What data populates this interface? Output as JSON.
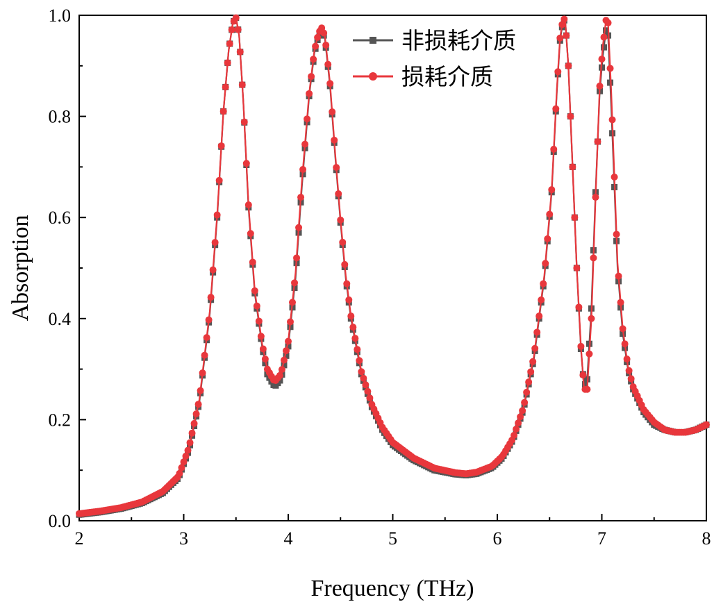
{
  "chart_data": {
    "type": "line",
    "xlabel": "Frequency (THz)",
    "ylabel": "Absorption",
    "xlim": [
      2,
      8
    ],
    "ylim": [
      0,
      1
    ],
    "xticks": [
      "2",
      "3",
      "4",
      "5",
      "6",
      "7",
      "8"
    ],
    "yticks": [
      "0.0",
      "0.2",
      "0.4",
      "0.6",
      "0.8",
      "1.0"
    ],
    "grid": false,
    "legend_position": "top-center",
    "x": [
      2.0,
      2.2,
      2.4,
      2.6,
      2.8,
      2.95,
      3.05,
      3.15,
      3.25,
      3.32,
      3.38,
      3.43,
      3.47,
      3.5,
      3.53,
      3.57,
      3.62,
      3.68,
      3.75,
      3.8,
      3.87,
      3.93,
      4.0,
      4.07,
      4.13,
      4.2,
      4.25,
      4.29,
      4.32,
      4.35,
      4.4,
      4.45,
      4.5,
      4.55,
      4.6,
      4.7,
      4.8,
      4.9,
      5.0,
      5.2,
      5.4,
      5.6,
      5.7,
      5.8,
      5.95,
      6.05,
      6.15,
      6.25,
      6.35,
      6.45,
      6.52,
      6.57,
      6.6,
      6.63,
      6.65,
      6.68,
      6.72,
      6.76,
      6.8,
      6.83,
      6.86,
      6.9,
      6.94,
      6.98,
      7.01,
      7.04,
      7.06,
      7.09,
      7.12,
      7.15,
      7.2,
      7.25,
      7.3,
      7.4,
      7.5,
      7.6,
      7.7,
      7.8,
      7.9,
      8.0
    ],
    "series": [
      {
        "name": "非损耗介质",
        "color": "#555555",
        "marker": "square",
        "values": [
          0.012,
          0.017,
          0.024,
          0.035,
          0.055,
          0.085,
          0.14,
          0.235,
          0.41,
          0.6,
          0.81,
          0.93,
          0.985,
          0.995,
          0.96,
          0.83,
          0.62,
          0.45,
          0.345,
          0.29,
          0.265,
          0.28,
          0.345,
          0.48,
          0.66,
          0.84,
          0.925,
          0.96,
          0.97,
          0.955,
          0.86,
          0.72,
          0.59,
          0.48,
          0.4,
          0.29,
          0.225,
          0.18,
          0.15,
          0.12,
          0.1,
          0.092,
          0.09,
          0.093,
          0.105,
          0.125,
          0.16,
          0.22,
          0.32,
          0.48,
          0.65,
          0.85,
          0.95,
          0.99,
          0.99,
          0.9,
          0.7,
          0.5,
          0.34,
          0.265,
          0.28,
          0.42,
          0.65,
          0.85,
          0.92,
          0.97,
          0.96,
          0.82,
          0.66,
          0.5,
          0.37,
          0.3,
          0.26,
          0.215,
          0.19,
          0.18,
          0.175,
          0.175,
          0.18,
          0.19
        ]
      },
      {
        "name": "损耗介质",
        "color": "#e8373c",
        "marker": "circle",
        "values": [
          0.014,
          0.019,
          0.026,
          0.037,
          0.058,
          0.088,
          0.145,
          0.24,
          0.415,
          0.605,
          0.81,
          0.93,
          0.985,
          0.995,
          0.96,
          0.83,
          0.625,
          0.455,
          0.35,
          0.3,
          0.275,
          0.29,
          0.355,
          0.49,
          0.67,
          0.845,
          0.93,
          0.965,
          0.975,
          0.96,
          0.865,
          0.725,
          0.595,
          0.485,
          0.405,
          0.295,
          0.23,
          0.185,
          0.155,
          0.124,
          0.104,
          0.095,
          0.093,
          0.096,
          0.108,
          0.128,
          0.163,
          0.224,
          0.325,
          0.485,
          0.655,
          0.855,
          0.955,
          0.995,
          0.99,
          0.9,
          0.7,
          0.5,
          0.345,
          0.26,
          0.26,
          0.4,
          0.64,
          0.86,
          0.94,
          0.99,
          0.985,
          0.85,
          0.68,
          0.51,
          0.38,
          0.305,
          0.265,
          0.22,
          0.195,
          0.18,
          0.175,
          0.175,
          0.18,
          0.19
        ]
      }
    ]
  }
}
